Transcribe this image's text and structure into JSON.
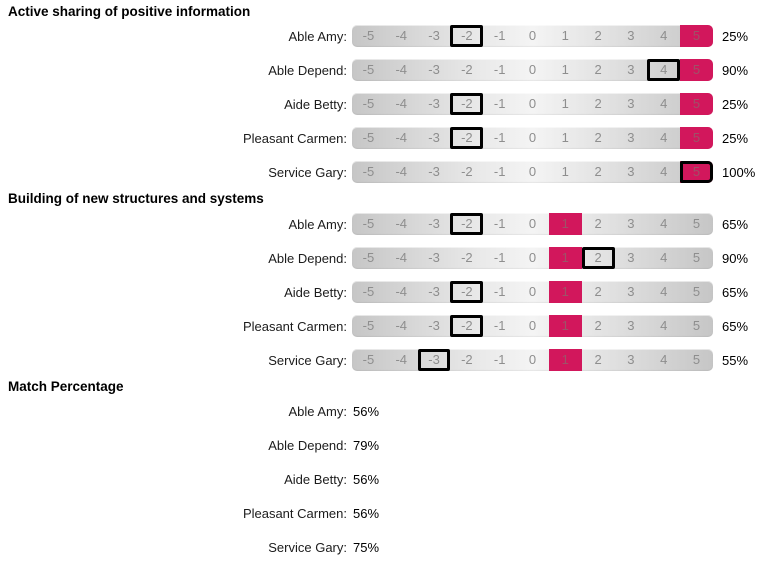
{
  "scale": {
    "values": [
      -5,
      -4,
      -3,
      -2,
      -1,
      0,
      1,
      2,
      3,
      4,
      5
    ]
  },
  "colors": {
    "highlight": "#d2175c",
    "cell_number": "#8e8e8e",
    "selection_border": "#000000",
    "bar_gray": "#c6c6c6"
  },
  "sections": [
    {
      "title": "Active sharing of positive information",
      "type": "scale",
      "rows": [
        {
          "label": "Able Amy:",
          "selected": -2,
          "highlighted": 5,
          "percent": "25%"
        },
        {
          "label": "Able Depend:",
          "selected": 4,
          "highlighted": 5,
          "percent": "90%"
        },
        {
          "label": "Aide Betty:",
          "selected": -2,
          "highlighted": 5,
          "percent": "25%"
        },
        {
          "label": "Pleasant Carmen:",
          "selected": -2,
          "highlighted": 5,
          "percent": "25%"
        },
        {
          "label": "Service Gary:",
          "selected": 5,
          "highlighted": 5,
          "percent": "100%"
        }
      ]
    },
    {
      "title": "Building of new structures and systems",
      "type": "scale",
      "rows": [
        {
          "label": "Able Amy:",
          "selected": -2,
          "highlighted": 1,
          "percent": "65%"
        },
        {
          "label": "Able Depend:",
          "selected": 2,
          "highlighted": 1,
          "percent": "90%"
        },
        {
          "label": "Aide Betty:",
          "selected": -2,
          "highlighted": 1,
          "percent": "65%"
        },
        {
          "label": "Pleasant Carmen:",
          "selected": -2,
          "highlighted": 1,
          "percent": "65%"
        },
        {
          "label": "Service Gary:",
          "selected": -3,
          "highlighted": 1,
          "percent": "55%"
        }
      ]
    },
    {
      "title": "Match Percentage",
      "type": "values",
      "rows": [
        {
          "label": "Able Amy:",
          "value": "56%"
        },
        {
          "label": "Able Depend:",
          "value": "79%"
        },
        {
          "label": "Aide Betty:",
          "value": "56%"
        },
        {
          "label": "Pleasant Carmen:",
          "value": "56%"
        },
        {
          "label": "Service Gary:",
          "value": "75%"
        }
      ]
    }
  ]
}
